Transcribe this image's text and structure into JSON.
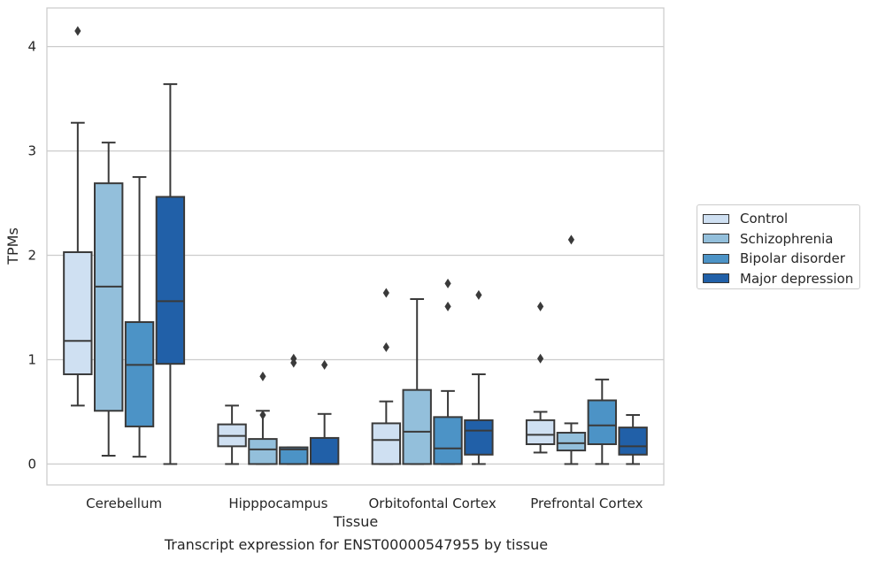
{
  "caption": "Transcript expression for ENST00000547955 by tissue",
  "colors": {
    "control": "#cfe0f2",
    "schizophrenia": "#93bfdb",
    "bipolar": "#4c93c6",
    "depression": "#2160a8",
    "grid": "#cccccc",
    "stroke": "#3a3a3a"
  },
  "chart_data": {
    "type": "box",
    "xlabel": "Tissue",
    "ylabel": "TPMs",
    "ylim": [
      -0.2,
      4.37
    ],
    "yticks": [
      0,
      1,
      2,
      3,
      4
    ],
    "grid": true,
    "legend_position": "right",
    "categories": [
      "Cerebellum",
      "Hipppocampus",
      "Orbitofontal Cortex",
      "Prefrontal Cortex"
    ],
    "series": [
      {
        "name": "Control",
        "color": "#cfe0f2",
        "boxes": [
          {
            "min": 0.56,
            "q1": 0.86,
            "median": 1.18,
            "q3": 2.03,
            "max": 3.27,
            "outliers": [
              4.15
            ]
          },
          {
            "min": 0.0,
            "q1": 0.17,
            "median": 0.27,
            "q3": 0.38,
            "max": 0.56,
            "outliers": []
          },
          {
            "min": 0.0,
            "q1": 0.0,
            "median": 0.23,
            "q3": 0.39,
            "max": 0.6,
            "outliers": [
              1.12,
              1.64
            ]
          },
          {
            "min": 0.11,
            "q1": 0.19,
            "median": 0.28,
            "q3": 0.42,
            "max": 0.5,
            "outliers": [
              1.01,
              1.51
            ]
          }
        ]
      },
      {
        "name": "Schizophrenia",
        "color": "#93bfdb",
        "boxes": [
          {
            "min": 0.08,
            "q1": 0.51,
            "median": 1.7,
            "q3": 2.69,
            "max": 3.08,
            "outliers": []
          },
          {
            "min": 0.0,
            "q1": 0.0,
            "median": 0.14,
            "q3": 0.24,
            "max": 0.51,
            "outliers": [
              0.47,
              0.84
            ]
          },
          {
            "min": 0.0,
            "q1": 0.0,
            "median": 0.31,
            "q3": 0.71,
            "max": 1.58,
            "outliers": []
          },
          {
            "min": 0.0,
            "q1": 0.13,
            "median": 0.2,
            "q3": 0.3,
            "max": 0.39,
            "outliers": [
              2.15
            ]
          }
        ]
      },
      {
        "name": "Bipolar disorder",
        "color": "#4c93c6",
        "boxes": [
          {
            "min": 0.07,
            "q1": 0.36,
            "median": 0.95,
            "q3": 1.36,
            "max": 2.75,
            "outliers": []
          },
          {
            "min": 0.0,
            "q1": 0.0,
            "median": 0.14,
            "q3": 0.16,
            "max": 0.16,
            "outliers": [
              0.97,
              1.01
            ]
          },
          {
            "min": 0.0,
            "q1": 0.0,
            "median": 0.15,
            "q3": 0.45,
            "max": 0.7,
            "outliers": [
              1.51,
              1.73
            ]
          },
          {
            "min": 0.0,
            "q1": 0.19,
            "median": 0.37,
            "q3": 0.61,
            "max": 0.81,
            "outliers": []
          }
        ]
      },
      {
        "name": "Major depression",
        "color": "#2160a8",
        "boxes": [
          {
            "min": 0.0,
            "q1": 0.96,
            "median": 1.56,
            "q3": 2.56,
            "max": 3.64,
            "outliers": []
          },
          {
            "min": 0.0,
            "q1": 0.0,
            "median": 0.0,
            "q3": 0.25,
            "max": 0.48,
            "outliers": [
              0.95
            ]
          },
          {
            "min": 0.0,
            "q1": 0.09,
            "median": 0.32,
            "q3": 0.42,
            "max": 0.86,
            "outliers": [
              1.62
            ]
          },
          {
            "min": 0.0,
            "q1": 0.09,
            "median": 0.17,
            "q3": 0.35,
            "max": 0.47,
            "outliers": []
          }
        ]
      }
    ]
  }
}
